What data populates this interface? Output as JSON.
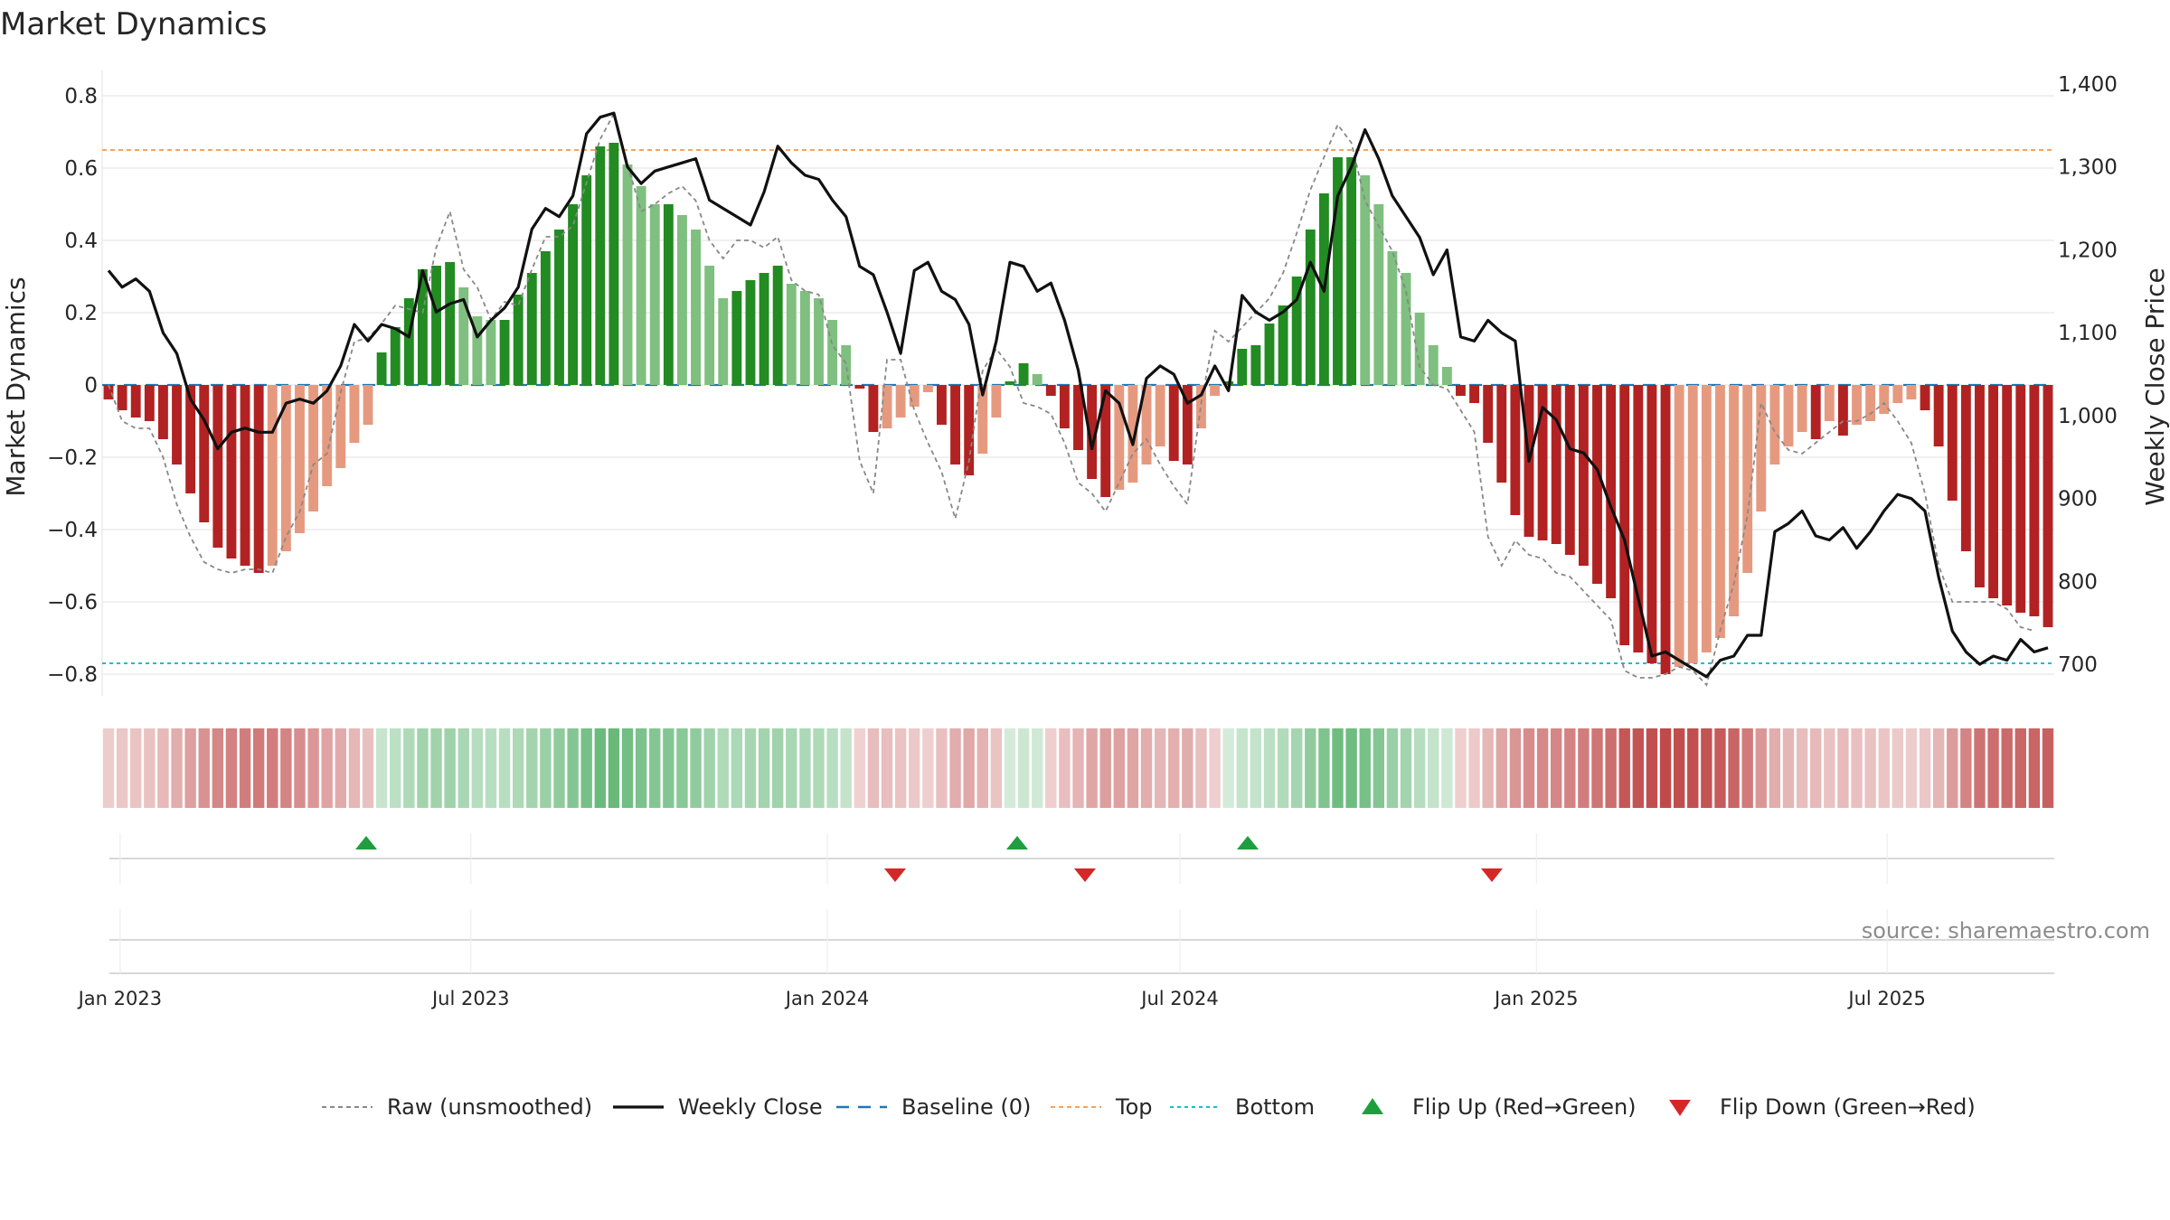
{
  "chart_data": {
    "type": "bar",
    "title": "Market Dynamics",
    "ylabel": "Market Dynamics",
    "y2label": "Weekly Close Price",
    "ylim": [
      -0.86,
      0.86
    ],
    "y2lim": [
      662,
      1412
    ],
    "yticks": [
      -0.8,
      -0.6,
      -0.4,
      -0.2,
      0,
      0.2,
      0.4,
      0.6,
      0.8
    ],
    "ytick_labels": [
      "−0.8",
      "−0.6",
      "−0.4",
      "−0.2",
      "0",
      "0.2",
      "0.4",
      "0.6",
      "0.8"
    ],
    "y2ticks": [
      700,
      800,
      900,
      1000,
      1100,
      1200,
      1300,
      1400
    ],
    "y2tick_labels": [
      "700",
      "800",
      "900",
      "1,000",
      "1,100",
      "1,200",
      "1,300",
      "1,400"
    ],
    "x_start": "2022-12-26",
    "x_end": "2025-09-22",
    "xticks": [
      "2023-01-01",
      "2023-07-01",
      "2024-01-01",
      "2024-07-01",
      "2025-01-01",
      "2025-07-01"
    ],
    "xtick_labels": [
      "Jan 2023",
      "Jul 2023",
      "Jan 2024",
      "Jul 2024",
      "Jan 2025",
      "Jul 2025"
    ],
    "top_level": 0.65,
    "bottom_level": -0.77,
    "baseline": 0,
    "grid": true,
    "legend_position": "bottom-center",
    "colors": {
      "bull_strong": "#228b22",
      "bull_weak": "#7fbf7f",
      "bear_strong": "#b22222",
      "bear_weak": "#e59a80",
      "raw": "#888888",
      "close": "#111111",
      "baseline": "#1f77b4",
      "top": "#f4a460",
      "bottom": "#17becf",
      "flip_up": "#1e9e3e",
      "flip_down": "#d62728"
    },
    "legend": [
      {
        "key": "raw",
        "label": "Raw (unsmoothed)",
        "style": "dashed-gray"
      },
      {
        "key": "close",
        "label": "Weekly Close",
        "style": "solid-black"
      },
      {
        "key": "baseline",
        "label": "Baseline (0)",
        "style": "dashed-blue"
      },
      {
        "key": "top",
        "label": "Top",
        "style": "dotted-orange"
      },
      {
        "key": "bottom",
        "label": "Bottom",
        "style": "dotted-cyan"
      },
      {
        "key": "flip_up",
        "label": "Flip Up (Red→Green)",
        "style": "triangle-up-green"
      },
      {
        "key": "flip_down",
        "label": "Flip Down (Green→Red)",
        "style": "triangle-down-red"
      }
    ],
    "dynamics": [
      -0.04,
      -0.07,
      -0.09,
      -0.1,
      -0.15,
      -0.22,
      -0.3,
      -0.38,
      -0.45,
      -0.48,
      -0.5,
      -0.52,
      -0.5,
      -0.46,
      -0.41,
      -0.35,
      -0.28,
      -0.23,
      -0.16,
      -0.11,
      0.09,
      0.16,
      0.24,
      0.32,
      0.33,
      0.34,
      0.27,
      0.19,
      0.18,
      0.18,
      0.25,
      0.31,
      0.37,
      0.43,
      0.5,
      0.58,
      0.66,
      0.67,
      0.61,
      0.55,
      0.5,
      0.5,
      0.47,
      0.43,
      0.33,
      0.24,
      0.26,
      0.29,
      0.31,
      0.33,
      0.28,
      0.26,
      0.24,
      0.18,
      0.11,
      -0.01,
      -0.13,
      -0.12,
      -0.09,
      -0.06,
      -0.02,
      -0.11,
      -0.22,
      -0.25,
      -0.19,
      -0.09,
      0.01,
      0.06,
      0.03,
      -0.03,
      -0.12,
      -0.18,
      -0.26,
      -0.31,
      -0.29,
      -0.27,
      -0.22,
      -0.17,
      -0.21,
      -0.22,
      -0.12,
      -0.03,
      0.01,
      0.1,
      0.11,
      0.17,
      0.22,
      0.3,
      0.43,
      0.53,
      0.63,
      0.63,
      0.58,
      0.5,
      0.37,
      0.31,
      0.2,
      0.11,
      0.05,
      -0.03,
      -0.05,
      -0.16,
      -0.27,
      -0.36,
      -0.42,
      -0.43,
      -0.44,
      -0.47,
      -0.5,
      -0.55,
      -0.59,
      -0.72,
      -0.74,
      -0.77,
      -0.8,
      -0.78,
      -0.77,
      -0.74,
      -0.7,
      -0.64,
      -0.52,
      -0.35,
      -0.22,
      -0.17,
      -0.13,
      -0.15,
      -0.1,
      -0.14,
      -0.11,
      -0.1,
      -0.08,
      -0.05,
      -0.04,
      -0.07,
      -0.17,
      -0.32,
      -0.46,
      -0.56,
      -0.59,
      -0.61,
      -0.63,
      -0.64,
      -0.67
    ],
    "raw": [
      0.0,
      -0.1,
      -0.12,
      -0.12,
      -0.2,
      -0.33,
      -0.42,
      -0.49,
      -0.51,
      -0.52,
      -0.51,
      -0.51,
      -0.52,
      -0.42,
      -0.35,
      -0.22,
      -0.19,
      -0.02,
      0.12,
      0.13,
      0.17,
      0.22,
      0.21,
      0.2,
      0.38,
      0.48,
      0.32,
      0.27,
      0.18,
      0.23,
      0.22,
      0.32,
      0.41,
      0.41,
      0.44,
      0.56,
      0.68,
      0.75,
      0.61,
      0.48,
      0.5,
      0.53,
      0.55,
      0.51,
      0.4,
      0.35,
      0.4,
      0.4,
      0.38,
      0.41,
      0.29,
      0.26,
      0.25,
      0.11,
      0.06,
      -0.21,
      -0.3,
      0.07,
      0.07,
      -0.07,
      -0.16,
      -0.24,
      -0.37,
      -0.21,
      0.04,
      0.1,
      0.05,
      -0.05,
      -0.06,
      -0.08,
      -0.16,
      -0.27,
      -0.3,
      -0.35,
      -0.27,
      -0.19,
      -0.15,
      -0.22,
      -0.28,
      -0.33,
      -0.05,
      0.15,
      0.12,
      0.16,
      0.2,
      0.24,
      0.31,
      0.42,
      0.54,
      0.63,
      0.72,
      0.67,
      0.51,
      0.44,
      0.37,
      0.26,
      0.05,
      0.0,
      -0.01,
      -0.07,
      -0.13,
      -0.42,
      -0.5,
      -0.43,
      -0.47,
      -0.48,
      -0.52,
      -0.53,
      -0.57,
      -0.61,
      -0.65,
      -0.79,
      -0.81,
      -0.81,
      -0.8,
      -0.78,
      -0.79,
      -0.83,
      -0.68,
      -0.55,
      -0.36,
      -0.05,
      -0.13,
      -0.18,
      -0.19,
      -0.16,
      -0.13,
      -0.1,
      -0.1,
      -0.08,
      -0.05,
      -0.1,
      -0.16,
      -0.3,
      -0.5,
      -0.6,
      -0.6,
      -0.6,
      -0.6,
      -0.62,
      -0.67,
      -0.68
    ],
    "close": [
      1175,
      1155,
      1165,
      1150,
      1100,
      1075,
      1020,
      995,
      960,
      980,
      985,
      980,
      980,
      1015,
      1020,
      1015,
      1030,
      1060,
      1110,
      1090,
      1110,
      1105,
      1095,
      1175,
      1125,
      1135,
      1140,
      1095,
      1115,
      1130,
      1155,
      1225,
      1250,
      1240,
      1265,
      1340,
      1360,
      1365,
      1300,
      1280,
      1295,
      1300,
      1305,
      1310,
      1260,
      1250,
      1240,
      1230,
      1270,
      1325,
      1305,
      1290,
      1285,
      1260,
      1240,
      1180,
      1170,
      1125,
      1075,
      1175,
      1185,
      1150,
      1140,
      1110,
      1025,
      1090,
      1185,
      1180,
      1150,
      1160,
      1115,
      1055,
      960,
      1030,
      1015,
      965,
      1045,
      1060,
      1050,
      1015,
      1025,
      1060,
      1030,
      1145,
      1125,
      1115,
      1125,
      1140,
      1185,
      1150,
      1265,
      1300,
      1345,
      1310,
      1265,
      1240,
      1215,
      1170,
      1200,
      1095,
      1090,
      1115,
      1100,
      1090,
      945,
      1010,
      995,
      960,
      955,
      935,
      890,
      850,
      780,
      710,
      715,
      705,
      695,
      685,
      705,
      710,
      735,
      735,
      860,
      870,
      885,
      855,
      850,
      865,
      840,
      860,
      885,
      905,
      900,
      885,
      805,
      740,
      715,
      700,
      710,
      705,
      730,
      715,
      720
    ],
    "flips_up": [
      "2023-05-08",
      "2024-04-08",
      "2024-08-05"
    ],
    "flips_down": [
      "2024-02-05",
      "2024-05-13",
      "2024-12-09"
    ],
    "source": "source: sharemaestro.com"
  }
}
